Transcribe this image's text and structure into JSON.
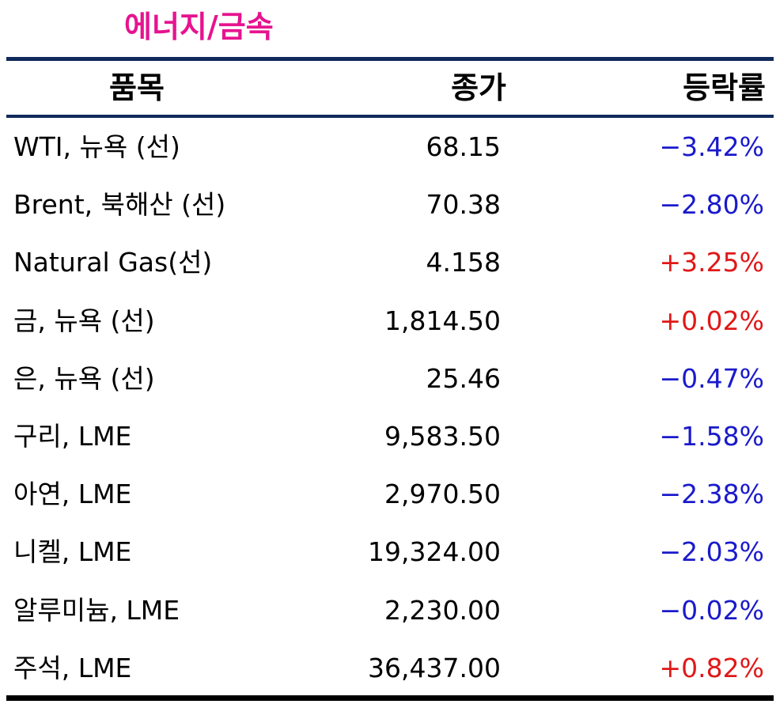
{
  "title": "에너지/금속",
  "colors": {
    "title": "#e6138f",
    "rule_header": "#102a5c",
    "rule_bottom": "#000000",
    "negative": "#1a1acc",
    "positive": "#e01818"
  },
  "table": {
    "headers": {
      "name": "품목",
      "close": "종가",
      "change": "등락률"
    },
    "rows": [
      {
        "name": "WTI, 뉴욕 (선)",
        "close": "68.15",
        "change": "−3.42%",
        "direction": "negative"
      },
      {
        "name": "Brent, 북해산 (선)",
        "close": "70.38",
        "change": "−2.80%",
        "direction": "negative"
      },
      {
        "name": "Natural Gas(선)",
        "close": "4.158",
        "change": "+3.25%",
        "direction": "positive"
      },
      {
        "name": "금, 뉴욕  (선)",
        "close": "1,814.50",
        "change": "+0.02%",
        "direction": "positive"
      },
      {
        "name": "은, 뉴욕  (선)",
        "close": "25.46",
        "change": "−0.47%",
        "direction": "negative"
      },
      {
        "name": "구리, LME",
        "close": "9,583.50",
        "change": "−1.58%",
        "direction": "negative"
      },
      {
        "name": "아연, LME",
        "close": "2,970.50",
        "change": "−2.38%",
        "direction": "negative"
      },
      {
        "name": "니켈, LME",
        "close": "19,324.00",
        "change": "−2.03%",
        "direction": "negative"
      },
      {
        "name": "알루미늄, LME",
        "close": "2,230.00",
        "change": "−0.02%",
        "direction": "negative"
      },
      {
        "name": "주석, LME",
        "close": "36,437.00",
        "change": "+0.82%",
        "direction": "positive"
      }
    ]
  }
}
